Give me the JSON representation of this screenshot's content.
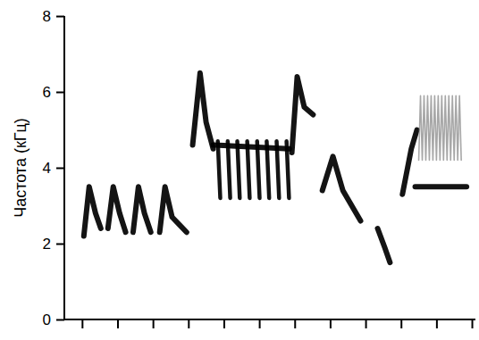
{
  "chart_data": {
    "type": "line",
    "y_label": "Частота (кГц)",
    "xlim": [
      -0.5,
      11.1
    ],
    "xticks": [
      0,
      1,
      2,
      3,
      4,
      5,
      6,
      7,
      8,
      9,
      10,
      11
    ],
    "ylim": [
      0,
      8
    ],
    "yticks": [
      0,
      2,
      4,
      6,
      8
    ],
    "tick_labels": "y",
    "grid": false,
    "color": "#000000",
    "series": [
      {
        "x": [
          0.05,
          0.2,
          0.38,
          0.53
        ],
        "values": [
          2.2,
          3.5,
          2.8,
          2.4
        ]
      },
      {
        "x": [
          0.73,
          0.88,
          1.06,
          1.23
        ],
        "values": [
          2.4,
          3.5,
          2.8,
          2.3
        ]
      },
      {
        "x": [
          1.44,
          1.59,
          1.76,
          1.94
        ],
        "values": [
          2.3,
          3.5,
          2.8,
          2.3
        ]
      },
      {
        "x": [
          2.19,
          2.34,
          2.54,
          2.95
        ],
        "values": [
          2.3,
          3.5,
          2.7,
          2.3
        ]
      },
      {
        "x": [
          3.12,
          3.33,
          3.5,
          3.7
        ],
        "values": [
          4.6,
          6.5,
          5.2,
          4.5
        ]
      },
      {
        "x": [
          3.7,
          5.85
        ],
        "values": [
          4.6,
          4.5
        ]
      },
      {
        "x": [
          3.83,
          3.9
        ],
        "values": [
          4.7,
          3.2
        ]
      },
      {
        "x": [
          4.11,
          4.18
        ],
        "values": [
          4.7,
          3.2
        ]
      },
      {
        "x": [
          4.38,
          4.45
        ],
        "values": [
          4.7,
          3.2
        ]
      },
      {
        "x": [
          4.66,
          4.73
        ],
        "values": [
          4.7,
          3.2
        ]
      },
      {
        "x": [
          4.94,
          5.01
        ],
        "values": [
          4.7,
          3.2
        ]
      },
      {
        "x": [
          5.21,
          5.28
        ],
        "values": [
          4.7,
          3.2
        ]
      },
      {
        "x": [
          5.49,
          5.56
        ],
        "values": [
          4.7,
          3.2
        ]
      },
      {
        "x": [
          5.77,
          5.84
        ],
        "values": [
          4.7,
          3.2
        ]
      },
      {
        "x": [
          5.92,
          6.07,
          6.27,
          6.52
        ],
        "values": [
          4.4,
          6.4,
          5.6,
          5.4
        ]
      },
      {
        "x": [
          6.78,
          7.08,
          7.36,
          7.86
        ],
        "values": [
          3.4,
          4.3,
          3.4,
          2.6
        ]
      },
      {
        "x": [
          8.34,
          8.54,
          8.69
        ],
        "values": [
          2.4,
          1.9,
          1.5
        ]
      },
      {
        "x": [
          9.04,
          9.29,
          9.45
        ],
        "values": [
          3.3,
          4.5,
          5.0
        ]
      },
      {
        "x": [
          9.4,
          10.85
        ],
        "values": [
          3.5,
          3.5
        ]
      },
      {
        "color": "#8a8a8a",
        "x": [
          9.5,
          9.55,
          9.6,
          9.65,
          9.7,
          9.75,
          9.8,
          9.85,
          9.9,
          9.95,
          10.0,
          10.05,
          10.1,
          10.15,
          10.2,
          10.25,
          10.3,
          10.35,
          10.4,
          10.45,
          10.5,
          10.55,
          10.6,
          10.65,
          10.7
        ],
        "values": [
          4.2,
          5.9,
          4.2,
          5.9,
          4.2,
          5.9,
          4.2,
          5.9,
          4.2,
          5.9,
          4.2,
          5.9,
          4.2,
          5.9,
          4.2,
          5.9,
          4.2,
          5.9,
          4.2,
          5.9,
          4.2,
          5.9,
          4.2,
          5.9,
          4.2
        ]
      }
    ]
  }
}
